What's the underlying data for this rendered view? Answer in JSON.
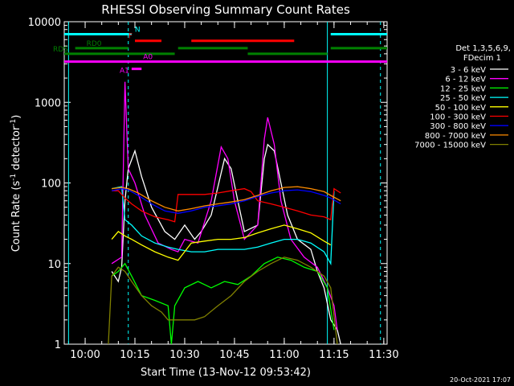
{
  "chart_data": {
    "type": "line",
    "title": "RHESSI Observing Summary Count Rates",
    "xlabel": "Start Time (13-Nov-12 09:53:42)",
    "ylabel": "Count Rate (s⁻¹ detector⁻¹)",
    "ylog": true,
    "xlim": [
      "09:53:42",
      "11:31:00"
    ],
    "ylim": [
      1,
      10000
    ],
    "x_ticks": [
      "10:00",
      "10:15",
      "10:30",
      "10:45",
      "11:00",
      "11:15",
      "11:30"
    ],
    "y_ticks": [
      "1",
      "10",
      "100",
      "1000",
      "10000"
    ],
    "legend": {
      "header": [
        "Det 1,3,5,6,9,",
        "FDecim 1"
      ],
      "position": "right"
    },
    "footer_date": "20-Oct-2021 17:07",
    "series": [
      {
        "name": "3 - 6 keV",
        "color": "#ffffff",
        "points": [
          [
            "10:08",
            8
          ],
          [
            "10:10",
            6
          ],
          [
            "10:11",
            9
          ],
          [
            "10:12",
            60
          ],
          [
            "10:13",
            150
          ],
          [
            "10:15",
            250
          ],
          [
            "10:17",
            120
          ],
          [
            "10:20",
            50
          ],
          [
            "10:24",
            25
          ],
          [
            "10:27",
            20
          ],
          [
            "10:30",
            30
          ],
          [
            "10:33",
            20
          ],
          [
            "10:35",
            25
          ],
          [
            "10:38",
            40
          ],
          [
            "10:42",
            200
          ],
          [
            "10:44",
            150
          ],
          [
            "10:46",
            60
          ],
          [
            "10:48",
            25
          ],
          [
            "10:52",
            30
          ],
          [
            "10:54",
            200
          ],
          [
            "10:55",
            300
          ],
          [
            "10:57",
            250
          ],
          [
            "10:59",
            100
          ],
          [
            "11:01",
            40
          ],
          [
            "11:04",
            20
          ],
          [
            "11:08",
            15
          ],
          [
            "11:10",
            8
          ],
          [
            "11:12",
            5
          ],
          [
            "11:14",
            2
          ],
          [
            "11:16",
            1.5
          ],
          [
            "11:17",
            1
          ]
        ]
      },
      {
        "name": "6 - 12 keV",
        "color": "#ff00ff",
        "points": [
          [
            "10:08",
            10
          ],
          [
            "10:11",
            12
          ],
          [
            "10:12",
            1800
          ],
          [
            "10:13",
            150
          ],
          [
            "10:15",
            100
          ],
          [
            "10:18",
            40
          ],
          [
            "10:22",
            18
          ],
          [
            "10:26",
            15
          ],
          [
            "10:28",
            14
          ],
          [
            "10:30",
            20
          ],
          [
            "10:34",
            18
          ],
          [
            "10:38",
            60
          ],
          [
            "10:41",
            280
          ],
          [
            "10:43",
            200
          ],
          [
            "10:45",
            60
          ],
          [
            "10:48",
            20
          ],
          [
            "10:52",
            30
          ],
          [
            "10:54",
            350
          ],
          [
            "10:55",
            650
          ],
          [
            "10:57",
            300
          ],
          [
            "10:59",
            60
          ],
          [
            "11:02",
            20
          ],
          [
            "11:06",
            12
          ],
          [
            "11:10",
            9
          ],
          [
            "11:13",
            5
          ],
          [
            "11:15",
            3
          ],
          [
            "11:16",
            1.5
          ]
        ]
      },
      {
        "name": "12 - 25 keV",
        "color": "#00ff00",
        "points": [
          [
            "10:08",
            7
          ],
          [
            "10:10",
            8
          ],
          [
            "10:12",
            10
          ],
          [
            "10:14",
            7
          ],
          [
            "10:17",
            4
          ],
          [
            "10:21",
            3.5
          ],
          [
            "10:25",
            3
          ],
          [
            "10:26",
            1
          ],
          [
            "10:27",
            3
          ],
          [
            "10:30",
            5
          ],
          [
            "10:34",
            6
          ],
          [
            "10:38",
            5
          ],
          [
            "10:42",
            6
          ],
          [
            "10:46",
            5.5
          ],
          [
            "10:50",
            7
          ],
          [
            "10:54",
            10
          ],
          [
            "10:58",
            12
          ],
          [
            "11:02",
            11
          ],
          [
            "11:06",
            9
          ],
          [
            "11:10",
            8
          ],
          [
            "11:13",
            5
          ],
          [
            "11:15",
            1.5
          ]
        ]
      },
      {
        "name": "25 - 50 keV",
        "color": "#00ffff",
        "points": [
          [
            "10:08",
            85
          ],
          [
            "10:11",
            90
          ],
          [
            "10:12",
            35
          ],
          [
            "10:14",
            30
          ],
          [
            "10:17",
            22
          ],
          [
            "10:21",
            18
          ],
          [
            "10:25",
            16
          ],
          [
            "10:28",
            15
          ],
          [
            "10:32",
            14
          ],
          [
            "10:36",
            14
          ],
          [
            "10:40",
            15
          ],
          [
            "10:44",
            15
          ],
          [
            "10:48",
            15
          ],
          [
            "10:52",
            16
          ],
          [
            "10:56",
            18
          ],
          [
            "11:00",
            20
          ],
          [
            "11:04",
            20
          ],
          [
            "11:08",
            18
          ],
          [
            "11:12",
            14
          ],
          [
            "11:14",
            10
          ],
          [
            "11:15",
            80
          ]
        ]
      },
      {
        "name": "50 - 100 keV",
        "color": "#ffff00",
        "points": [
          [
            "10:08",
            20
          ],
          [
            "10:10",
            25
          ],
          [
            "10:12",
            22
          ],
          [
            "10:14",
            20
          ],
          [
            "10:17",
            17
          ],
          [
            "10:21",
            14
          ],
          [
            "10:25",
            12
          ],
          [
            "10:28",
            11
          ],
          [
            "10:32",
            18
          ],
          [
            "10:36",
            19
          ],
          [
            "10:40",
            20
          ],
          [
            "10:44",
            20
          ],
          [
            "10:48",
            21
          ],
          [
            "10:52",
            24
          ],
          [
            "10:56",
            27
          ],
          [
            "11:00",
            30
          ],
          [
            "11:04",
            27
          ],
          [
            "11:08",
            24
          ],
          [
            "11:12",
            19
          ],
          [
            "11:14",
            17
          ]
        ]
      },
      {
        "name": "100 - 300 keV",
        "color": "#ff0000",
        "points": [
          [
            "10:08",
            80
          ],
          [
            "10:10",
            80
          ],
          [
            "10:12",
            65
          ],
          [
            "10:14",
            55
          ],
          [
            "10:17",
            45
          ],
          [
            "10:21",
            38
          ],
          [
            "10:25",
            35
          ],
          [
            "10:27",
            33
          ],
          [
            "10:28",
            72
          ],
          [
            "10:32",
            72
          ],
          [
            "10:36",
            72
          ],
          [
            "10:40",
            75
          ],
          [
            "10:44",
            80
          ],
          [
            "10:48",
            85
          ],
          [
            "10:50",
            78
          ],
          [
            "10:52",
            60
          ],
          [
            "10:56",
            55
          ],
          [
            "11:00",
            50
          ],
          [
            "11:04",
            45
          ],
          [
            "11:08",
            40
          ],
          [
            "11:12",
            38
          ],
          [
            "11:14",
            35
          ],
          [
            "11:15",
            85
          ],
          [
            "11:17",
            75
          ]
        ]
      },
      {
        "name": "300 - 800 keV",
        "color": "#0000ff",
        "points": [
          [
            "10:08",
            80
          ],
          [
            "10:11",
            85
          ],
          [
            "10:13",
            82
          ],
          [
            "10:16",
            70
          ],
          [
            "10:20",
            55
          ],
          [
            "10:24",
            45
          ],
          [
            "10:28",
            42
          ],
          [
            "10:32",
            45
          ],
          [
            "10:36",
            50
          ],
          [
            "10:40",
            52
          ],
          [
            "10:44",
            55
          ],
          [
            "10:48",
            60
          ],
          [
            "10:52",
            68
          ],
          [
            "10:56",
            75
          ],
          [
            "11:00",
            80
          ],
          [
            "11:04",
            82
          ],
          [
            "11:08",
            78
          ],
          [
            "11:12",
            70
          ],
          [
            "11:14",
            65
          ],
          [
            "11:17",
            55
          ]
        ]
      },
      {
        "name": "800 - 7000 keV",
        "color": "#ff8c00",
        "points": [
          [
            "10:08",
            85
          ],
          [
            "10:11",
            88
          ],
          [
            "10:13",
            85
          ],
          [
            "10:16",
            75
          ],
          [
            "10:20",
            60
          ],
          [
            "10:24",
            50
          ],
          [
            "10:28",
            45
          ],
          [
            "10:32",
            48
          ],
          [
            "10:36",
            52
          ],
          [
            "10:40",
            55
          ],
          [
            "10:44",
            58
          ],
          [
            "10:48",
            62
          ],
          [
            "10:52",
            70
          ],
          [
            "10:56",
            80
          ],
          [
            "11:00",
            88
          ],
          [
            "11:04",
            90
          ],
          [
            "11:08",
            85
          ],
          [
            "11:12",
            78
          ],
          [
            "11:14",
            70
          ],
          [
            "11:17",
            60
          ]
        ]
      },
      {
        "name": "7000 - 15000 keV",
        "color": "#808000",
        "points": [
          [
            "10:07",
            1
          ],
          [
            "10:08",
            7
          ],
          [
            "10:10",
            9
          ],
          [
            "10:12",
            8
          ],
          [
            "10:14",
            6
          ],
          [
            "10:17",
            4
          ],
          [
            "10:20",
            3
          ],
          [
            "10:23",
            2.5
          ],
          [
            "10:25",
            2
          ],
          [
            "10:29",
            2
          ],
          [
            "10:33",
            2
          ],
          [
            "10:36",
            2.2
          ],
          [
            "10:40",
            3
          ],
          [
            "10:44",
            4
          ],
          [
            "10:48",
            6
          ],
          [
            "10:52",
            8
          ],
          [
            "10:56",
            10
          ],
          [
            "11:00",
            12
          ],
          [
            "11:04",
            11
          ],
          [
            "11:08",
            9
          ],
          [
            "11:12",
            7
          ],
          [
            "11:14",
            5
          ],
          [
            "11:16",
            1
          ]
        ]
      }
    ],
    "flag_bars": [
      {
        "label": "N",
        "color": "#00ffff",
        "level": 7000,
        "segments": [
          [
            "09:53:42",
            "10:14"
          ],
          [
            "11:14",
            "11:31"
          ]
        ]
      },
      {
        "label": "F",
        "color": "#ff0000",
        "level": 5800,
        "segments": [
          [
            "10:15",
            "10:23"
          ],
          [
            "10:32",
            "11:03"
          ]
        ]
      },
      {
        "label": "RD0",
        "color": "#008000",
        "level": 4700,
        "segments": [
          [
            "09:57",
            "10:13"
          ],
          [
            "10:28",
            "10:49"
          ],
          [
            "11:14",
            "11:31"
          ]
        ]
      },
      {
        "label": "RDS",
        "color": "#008000",
        "level": 4000,
        "segments": [
          [
            "09:53:42",
            "10:27"
          ],
          [
            "10:49",
            "11:13"
          ]
        ]
      },
      {
        "label": "A0",
        "color": "#ff00ff",
        "level": 3200,
        "segments": [
          [
            "09:53:42",
            "11:31"
          ]
        ]
      },
      {
        "label": "A1",
        "color": "#ff00ff",
        "level": 2600,
        "segments": [
          [
            "10:14",
            "10:17"
          ]
        ]
      }
    ],
    "markers": [
      {
        "color": "#00ffff",
        "style": "solid",
        "x": "09:55"
      },
      {
        "color": "#00ffff",
        "style": "dashed",
        "x": "10:13"
      },
      {
        "color": "#00ffff",
        "style": "solid",
        "x": "11:13"
      },
      {
        "color": "#00ffff",
        "style": "dashed",
        "x": "11:29"
      }
    ]
  }
}
